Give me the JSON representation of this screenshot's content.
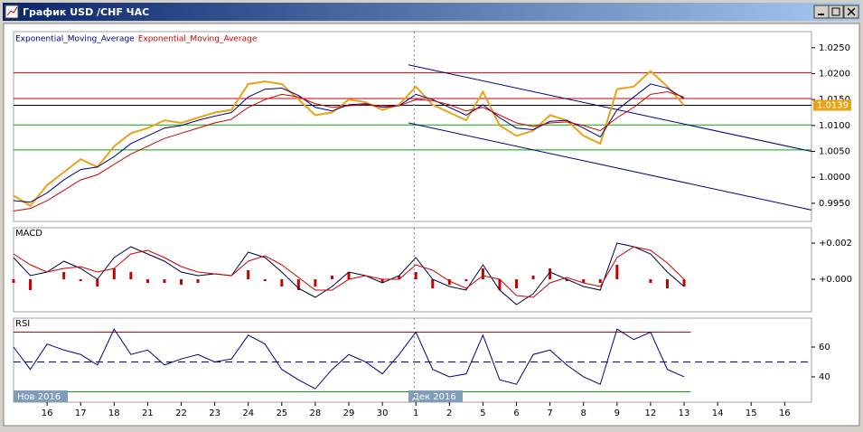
{
  "window": {
    "title": "График USD /CHF  ЧАС"
  },
  "chart_data": [
    {
      "type": "line",
      "xlim": [
        -1,
        22.8
      ],
      "x": [
        -1,
        -0.5,
        0,
        0.5,
        1,
        1.5,
        2,
        2.5,
        3,
        3.5,
        4,
        4.5,
        5,
        5.5,
        6,
        6.5,
        7,
        7.5,
        8,
        8.5,
        9,
        9.5,
        10,
        10.5,
        11,
        11.5,
        12,
        12.5,
        13,
        13.5,
        14,
        14.5,
        15,
        15.5,
        16,
        16.5,
        17,
        17.5,
        18,
        18.5,
        19
      ],
      "ylim": [
        0.9915,
        1.0281
      ],
      "yticks": [
        {
          "value": 1.025,
          "label": "1.0250"
        },
        {
          "value": 1.02,
          "label": "1.0200"
        },
        {
          "value": 1.015,
          "label": "1.0150"
        },
        {
          "value": 1.01,
          "label": "1.0100"
        },
        {
          "value": 1.005,
          "label": "1.0050"
        },
        {
          "value": 1.0,
          "label": "1.0000"
        },
        {
          "value": 0.995,
          "label": "0.9950"
        }
      ],
      "series": [
        {
          "color": "#e8a317",
          "values": [
            0.9965,
            0.9945,
            0.9985,
            1.001,
            1.0035,
            1.002,
            1.006,
            1.0085,
            1.0095,
            1.011,
            1.0105,
            1.0115,
            1.0125,
            1.013,
            1.018,
            1.0185,
            1.018,
            1.015,
            1.012,
            1.0125,
            1.015,
            1.0145,
            1.013,
            1.014,
            1.0175,
            1.014,
            1.0125,
            1.011,
            1.0165,
            1.01,
            1.008,
            1.009,
            1.012,
            1.011,
            1.008,
            1.0065,
            1.017,
            1.0175,
            1.0205,
            1.0175,
            1.0139
          ]
        },
        {
          "name": "Exponential_Moving_Average",
          "color": "#000080",
          "values": [
            0.9955,
            0.9952,
            0.997,
            0.9995,
            1.0015,
            1.002,
            1.004,
            1.0065,
            1.008,
            1.0095,
            1.01,
            1.011,
            1.0118,
            1.0125,
            1.0155,
            1.017,
            1.0172,
            1.0158,
            1.0135,
            1.0128,
            1.014,
            1.0142,
            1.0135,
            1.0138,
            1.016,
            1.015,
            1.0135,
            1.012,
            1.014,
            1.0115,
            1.0095,
            1.0092,
            1.0108,
            1.011,
            1.0095,
            1.0078,
            1.013,
            1.0155,
            1.018,
            1.0172,
            1.0152
          ]
        },
        {
          "name": "Exponential_Moving_Average",
          "color": "#cc0000",
          "values": [
            0.9935,
            0.994,
            0.9955,
            0.9975,
            0.9995,
            1.0005,
            1.0025,
            1.0045,
            1.006,
            1.0075,
            1.0085,
            1.0095,
            1.0105,
            1.0112,
            1.0135,
            1.015,
            1.016,
            1.0155,
            1.0142,
            1.0135,
            1.0138,
            1.014,
            1.0138,
            1.0138,
            1.015,
            1.0148,
            1.014,
            1.0128,
            1.0135,
            1.012,
            1.0105,
            1.0098,
            1.0105,
            1.0107,
            1.01,
            1.009,
            1.0115,
            1.0135,
            1.016,
            1.0165,
            1.0155
          ]
        }
      ],
      "levels": [
        {
          "value": 1.0202,
          "color": "#cc0000"
        },
        {
          "value": 1.0152,
          "color": "#cc0000"
        },
        {
          "value": 1.0139,
          "color": "#000000"
        },
        {
          "value": 1.0101,
          "color": "#00aa00"
        },
        {
          "value": 1.0053,
          "color": "#00aa00"
        }
      ],
      "trendlines": [
        {
          "color": "#000080",
          "x": [
            10.78,
            22.8
          ],
          "y": [
            1.0217,
            1.005
          ]
        },
        {
          "color": "#000080",
          "x": [
            10.78,
            22.8
          ],
          "y": [
            1.0105,
            0.9937
          ]
        }
      ],
      "last_price": {
        "value": 1.0139,
        "label": "1.0139",
        "color": "#e8a317"
      },
      "separator": 10.95
    },
    {
      "type": "line",
      "title": "MACD",
      "xlim": [
        -1,
        22.8
      ],
      "x": [
        -1,
        -0.5,
        0,
        0.5,
        1,
        1.5,
        2,
        2.5,
        3,
        3.5,
        4,
        4.5,
        5,
        5.5,
        6,
        6.5,
        7,
        7.5,
        8,
        8.5,
        9,
        9.5,
        10,
        10.5,
        11,
        11.5,
        12,
        12.5,
        13,
        13.5,
        14,
        14.5,
        15,
        15.5,
        16,
        16.5,
        17,
        17.5,
        18,
        18.5,
        19
      ],
      "ylim": [
        -0.0018,
        0.00285
      ],
      "yticks": [
        {
          "value": 0.002,
          "label": "+0.002"
        },
        {
          "value": 0.0,
          "label": "+0.000"
        }
      ],
      "series": [
        {
          "type": "bar",
          "color": "#cc0000",
          "values": [
            -0.0002,
            -0.0006,
            0,
            0.0004,
            -0.0001,
            -0.0004,
            0.0006,
            0.0004,
            -0.0002,
            -0.0002,
            -0.0003,
            -0.0002,
            0,
            0,
            0.0005,
            -0.0001,
            -0.0004,
            -0.0006,
            -0.0004,
            0.0002,
            0.0004,
            0,
            -0.0002,
            0.0002,
            0.0004,
            -0.0005,
            -0.0003,
            -0.0001,
            0.0006,
            -0.0006,
            -0.0005,
            0.0002,
            0.0006,
            -0.0001,
            -0.0002,
            -0.0002,
            0.0008,
            0,
            -0.0002,
            -0.0005,
            -0.0004
          ]
        },
        {
          "color": "#000040",
          "values": [
            0.0012,
            0.0002,
            0.0004,
            0.001,
            0.0006,
            0,
            0.0012,
            0.0018,
            0.0014,
            0.001,
            0.0004,
            0.0002,
            0.0003,
            0.0002,
            0.0015,
            0.0012,
            0.0004,
            -0.0005,
            -0.001,
            -0.0004,
            0.0004,
            0.0002,
            -0.0002,
            0.0002,
            0.0012,
            0,
            -0.0004,
            -0.0006,
            0.0008,
            -0.0006,
            -0.0014,
            -0.0008,
            0.0004,
            0,
            -0.0004,
            -0.0006,
            0.002,
            0.0018,
            0.0014,
            0.0004,
            -0.0004
          ]
        },
        {
          "color": "#cc0000",
          "values": [
            0.0014,
            0.0008,
            0.0004,
            0.0006,
            0.0007,
            0.0004,
            0.0006,
            0.0014,
            0.0016,
            0.0012,
            0.0007,
            0.0004,
            0.0003,
            0.0002,
            0.001,
            0.0013,
            0.0008,
            0.0001,
            -0.0006,
            -0.0006,
            0,
            0.0002,
            0,
            0,
            0.0008,
            0.0005,
            -0.0001,
            -0.0005,
            0.0002,
            0,
            -0.0009,
            -0.001,
            -0.0002,
            0.0001,
            -0.0002,
            -0.0004,
            0.0012,
            0.0018,
            0.0016,
            0.0009,
            0
          ]
        }
      ]
    },
    {
      "type": "line",
      "title": "RSI",
      "xlim": [
        -1,
        22.8
      ],
      "x": [
        -1,
        -0.5,
        0,
        0.5,
        1,
        1.5,
        2,
        2.5,
        3,
        3.5,
        4,
        4.5,
        5,
        5.5,
        6,
        6.5,
        7,
        7.5,
        8,
        8.5,
        9,
        9.5,
        10,
        10.5,
        11,
        11.5,
        12,
        12.5,
        13,
        13.5,
        14,
        14.5,
        15,
        15.5,
        16,
        16.5,
        17,
        17.5,
        18,
        18.5,
        19
      ],
      "ylim": [
        23,
        79.4
      ],
      "yticks": [
        60,
        40
      ],
      "series": [
        {
          "color": "#000080",
          "values": [
            60,
            45,
            62,
            58,
            55,
            48,
            72,
            55,
            58,
            48,
            52,
            55,
            50,
            52,
            68,
            62,
            45,
            38,
            32,
            45,
            55,
            50,
            42,
            55,
            70,
            45,
            40,
            42,
            68,
            38,
            35,
            55,
            58,
            48,
            40,
            35,
            72,
            65,
            70,
            45,
            40
          ]
        }
      ],
      "levels": [
        {
          "value": 70,
          "color": "#cc0000"
        },
        {
          "value": 50,
          "color": "#000080",
          "dashed": true
        },
        {
          "value": 30,
          "color": "#00aa00"
        }
      ],
      "xticks": [
        {
          "value": 0,
          "label": "16"
        },
        {
          "value": 1,
          "label": "17"
        },
        {
          "value": 2,
          "label": "18"
        },
        {
          "value": 3,
          "label": "21"
        },
        {
          "value": 4,
          "label": "22"
        },
        {
          "value": 5,
          "label": "23"
        },
        {
          "value": 6,
          "label": "24"
        },
        {
          "value": 7,
          "label": "25"
        },
        {
          "value": 8,
          "label": "28"
        },
        {
          "value": 9,
          "label": "29"
        },
        {
          "value": 10,
          "label": "30"
        },
        {
          "value": 11,
          "label": "1"
        },
        {
          "value": 12,
          "label": "2"
        },
        {
          "value": 13,
          "label": "5"
        },
        {
          "value": 14,
          "label": "6"
        },
        {
          "value": 15,
          "label": "7"
        },
        {
          "value": 16,
          "label": "8"
        },
        {
          "value": 17,
          "label": "9"
        },
        {
          "value": 18,
          "label": "12"
        },
        {
          "value": 19,
          "label": "13"
        },
        {
          "value": 20,
          "label": "14"
        },
        {
          "value": 21,
          "label": "15"
        },
        {
          "value": 22,
          "label": "16"
        }
      ],
      "month_labels": [
        {
          "value": -1,
          "label": "Нов 2016"
        },
        {
          "value": 10.78,
          "label": "Дек 2016"
        }
      ]
    }
  ]
}
